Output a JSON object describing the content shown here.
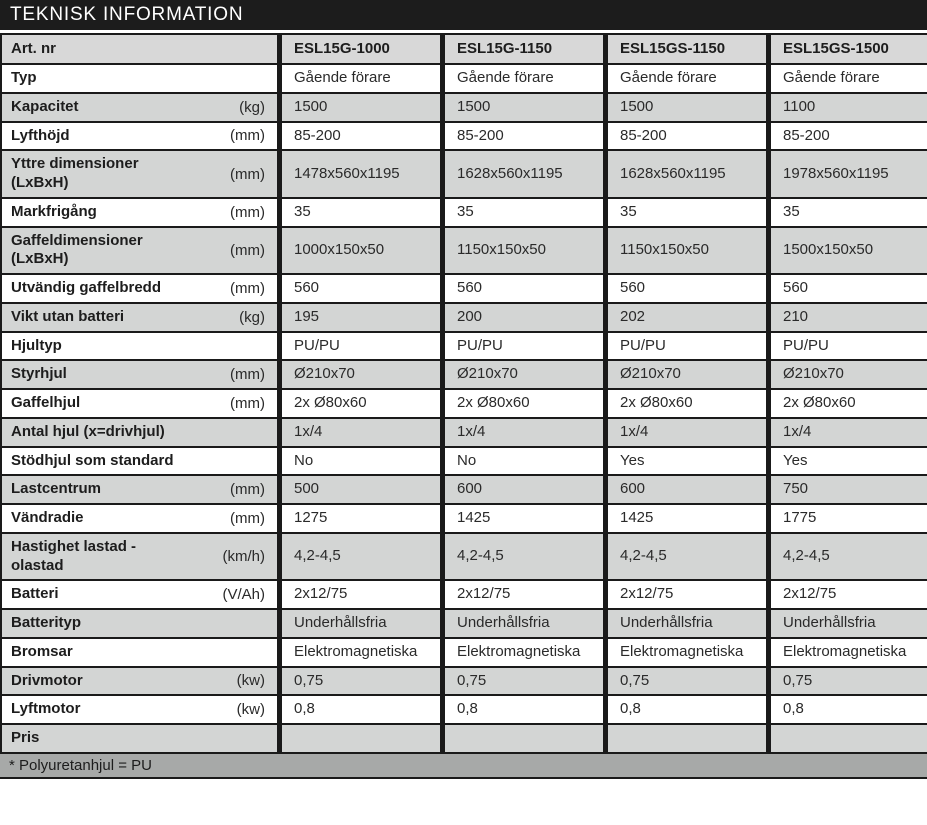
{
  "title": "TEKNISK INFORMATION",
  "footnote": "* Polyuretanhjul = PU",
  "colors": {
    "title_bg": "#1c1c1c",
    "title_text": "#ffffff",
    "header_bg": "#d8d8d8",
    "row_gray": "#d3d5d4",
    "row_white": "#ffffff",
    "footer_bg": "#a7a9a8",
    "border": "#1a1a1a"
  },
  "table": {
    "header": {
      "label": "Art. nr",
      "models": [
        "ESL15G-1000",
        "ESL15G-1150",
        "ESL15GS-1150",
        "ESL15GS-1500"
      ]
    },
    "rows": [
      {
        "label": "Typ",
        "unit": "",
        "values": [
          "Gående förare",
          "Gående förare",
          "Gående förare",
          "Gående förare"
        ]
      },
      {
        "label": "Kapacitet",
        "unit": "(kg)",
        "values": [
          "1500",
          "1500",
          "1500",
          "1100"
        ]
      },
      {
        "label": "Lyfthöjd",
        "unit": "(mm)",
        "values": [
          "85-200",
          "85-200",
          "85-200",
          "85-200"
        ]
      },
      {
        "label": "Yttre dimensioner\n(LxBxH)",
        "unit": "(mm)",
        "values": [
          "1478x560x1195",
          "1628x560x1195",
          "1628x560x1195",
          "1978x560x1195"
        ]
      },
      {
        "label": "Markfrigång",
        "unit": "(mm)",
        "values": [
          "35",
          "35",
          "35",
          "35"
        ]
      },
      {
        "label": "Gaffeldimensioner\n(LxBxH)",
        "unit": "(mm)",
        "values": [
          "1000x150x50",
          "1150x150x50",
          "1150x150x50",
          "1500x150x50"
        ]
      },
      {
        "label": "Utvändig gaffelbredd",
        "unit": "(mm)",
        "values": [
          "560",
          "560",
          "560",
          "560"
        ]
      },
      {
        "label": "Vikt utan batteri",
        "unit": "(kg)",
        "values": [
          "195",
          "200",
          "202",
          "210"
        ]
      },
      {
        "label": "Hjultyp",
        "unit": "",
        "values": [
          "PU/PU",
          "PU/PU",
          "PU/PU",
          "PU/PU"
        ]
      },
      {
        "label": "Styrhjul",
        "unit": "(mm)",
        "values": [
          "Ø210x70",
          "Ø210x70",
          "Ø210x70",
          "Ø210x70"
        ]
      },
      {
        "label": "Gaffelhjul",
        "unit": "(mm)",
        "values": [
          "2x Ø80x60",
          "2x Ø80x60",
          "2x Ø80x60",
          "2x Ø80x60"
        ]
      },
      {
        "label": "Antal hjul (x=drivhjul)",
        "unit": "",
        "values": [
          "1x/4",
          "1x/4",
          "1x/4",
          "1x/4"
        ]
      },
      {
        "label": "Stödhjul som standard",
        "unit": "",
        "values": [
          "No",
          "No",
          "Yes",
          "Yes"
        ]
      },
      {
        "label": "Lastcentrum",
        "unit": "(mm)",
        "values": [
          "500",
          "600",
          "600",
          "750"
        ]
      },
      {
        "label": "Vändradie",
        "unit": "(mm)",
        "values": [
          "1275",
          "1425",
          "1425",
          "1775"
        ]
      },
      {
        "label": "Hastighet lastad -\nolastad",
        "unit": "(km/h)",
        "values": [
          "4,2-4,5",
          "4,2-4,5",
          "4,2-4,5",
          "4,2-4,5"
        ]
      },
      {
        "label": "Batteri",
        "unit": "(V/Ah)",
        "values": [
          "2x12/75",
          "2x12/75",
          "2x12/75",
          "2x12/75"
        ]
      },
      {
        "label": "Batterityp",
        "unit": "",
        "values": [
          "Underhållsfria",
          "Underhållsfria",
          "Underhållsfria",
          "Underhållsfria"
        ]
      },
      {
        "label": "Bromsar",
        "unit": "",
        "values": [
          "Elektromagnetiska",
          "Elektromagnetiska",
          "Elektromagnetiska",
          "Elektromagnetiska"
        ]
      },
      {
        "label": "Drivmotor",
        "unit": "(kw)",
        "values": [
          "0,75",
          "0,75",
          "0,75",
          "0,75"
        ]
      },
      {
        "label": "Lyftmotor",
        "unit": "(kw)",
        "values": [
          "0,8",
          "0,8",
          "0,8",
          "0,8"
        ]
      },
      {
        "label": "Pris",
        "unit": "",
        "values": [
          "",
          "",
          "",
          ""
        ]
      }
    ]
  }
}
